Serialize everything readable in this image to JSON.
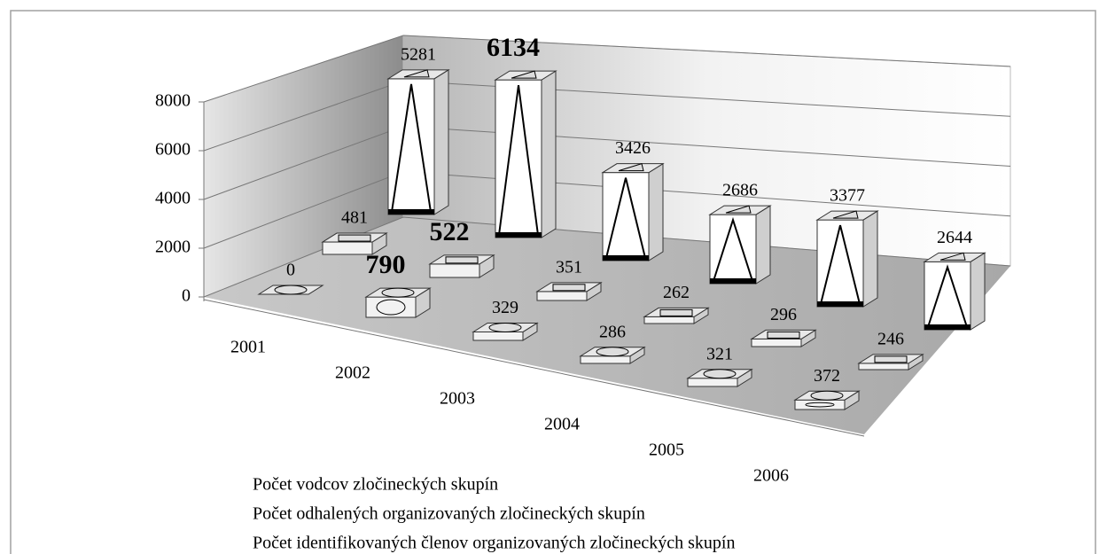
{
  "chart_data": {
    "type": "bar3d",
    "categories": [
      "2001",
      "2002",
      "2003",
      "2004",
      "2005",
      "2006"
    ],
    "series": [
      {
        "name": "Počet vodcov zločineckých skupín",
        "color": "#f2f2f2",
        "values": [
          0,
          790,
          329,
          286,
          321,
          372
        ],
        "bold": [
          false,
          true,
          false,
          false,
          false,
          false
        ]
      },
      {
        "name": "Počet odhalených organizovaných zločineckých skupín",
        "color": "#f2f2f2",
        "values": [
          481,
          522,
          351,
          262,
          296,
          246
        ],
        "bold": [
          false,
          true,
          false,
          false,
          false,
          false
        ]
      },
      {
        "name": "Počet identifikovaných členov organizovaných zločineckých skupín",
        "color": "#ffffff",
        "values": [
          5281,
          6134,
          3426,
          2686,
          3377,
          2644
        ],
        "bold": [
          false,
          true,
          false,
          false,
          false,
          false
        ]
      }
    ],
    "ylim": [
      0,
      8000
    ],
    "yticks": [
      0,
      2000,
      4000,
      6000,
      8000
    ],
    "grid": true
  }
}
